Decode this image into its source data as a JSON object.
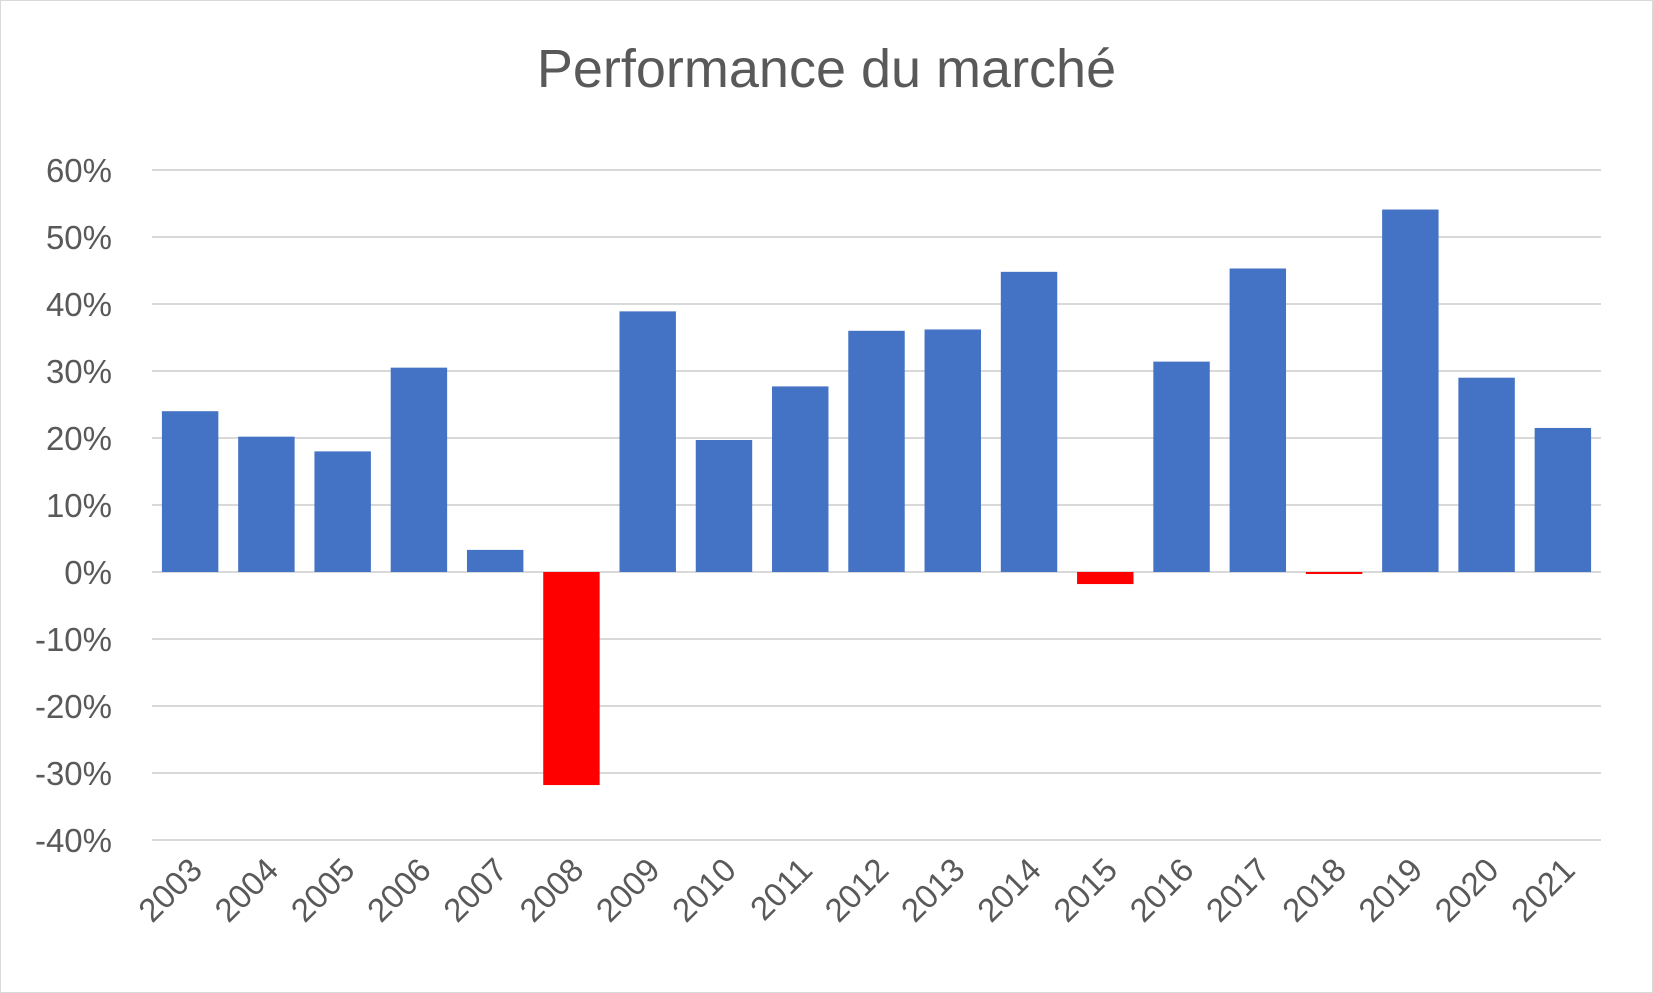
{
  "chart_data": {
    "type": "bar",
    "title": "Performance du marché",
    "xlabel": "",
    "ylabel": "",
    "categories": [
      "2003",
      "2004",
      "2005",
      "2006",
      "2007",
      "2008",
      "2009",
      "2010",
      "2011",
      "2012",
      "2013",
      "2014",
      "2015",
      "2016",
      "2017",
      "2018",
      "2019",
      "2020",
      "2021"
    ],
    "values": [
      0.24,
      0.202,
      0.18,
      0.305,
      0.033,
      -0.318,
      0.389,
      0.197,
      0.277,
      0.36,
      0.362,
      0.448,
      -0.018,
      0.314,
      0.453,
      -0.003,
      0.541,
      0.29,
      0.215
    ],
    "ylim": [
      -0.4,
      0.6
    ],
    "yticks": [
      0.6,
      0.5,
      0.4,
      0.3,
      0.2,
      0.1,
      0.0,
      -0.1,
      -0.2,
      -0.3,
      -0.4
    ],
    "ytick_labels": [
      "60%",
      "50%",
      "40%",
      "30%",
      "20%",
      "10%",
      "0%",
      "-10%",
      "-20%",
      "-30%",
      "-40%"
    ],
    "grid": true,
    "legend": "none",
    "colors": {
      "positive": "#4472C4",
      "negative": "#FF0000",
      "grid": "#d9d9d9",
      "text": "#595959"
    }
  }
}
